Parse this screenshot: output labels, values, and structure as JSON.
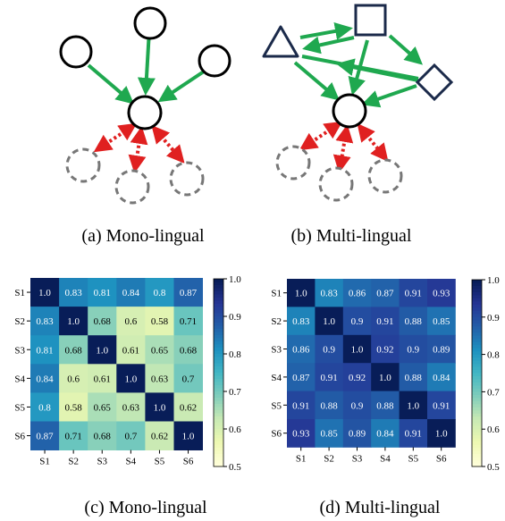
{
  "captions": {
    "a": "(a)  Mono-lingual",
    "b": "(b)  Multi-lingual",
    "c": "(c)  Mono-lingual",
    "d": "(d)  Multi-lingual"
  },
  "colors": {
    "node_stroke": "#000000",
    "shape_stroke": "#1b2a4a",
    "positive_edge": "#1fa84f",
    "negative_edge": "#e02020",
    "dashed_node": "#777777"
  },
  "chart_data": [
    {
      "type": "heatmap",
      "rows": [
        "S1",
        "S2",
        "S3",
        "S4",
        "S5",
        "S6"
      ],
      "cols": [
        "S1",
        "S2",
        "S3",
        "S4",
        "S5",
        "S6"
      ],
      "values": [
        [
          1.0,
          0.83,
          0.81,
          0.84,
          0.8,
          0.87
        ],
        [
          0.83,
          1.0,
          0.68,
          0.6,
          0.58,
          0.71
        ],
        [
          0.81,
          0.68,
          1.0,
          0.61,
          0.65,
          0.68
        ],
        [
          0.84,
          0.6,
          0.61,
          1.0,
          0.63,
          0.7
        ],
        [
          0.8,
          0.58,
          0.65,
          0.63,
          1.0,
          0.62
        ],
        [
          0.87,
          0.71,
          0.68,
          0.7,
          0.62,
          1.0
        ]
      ],
      "labels": [
        [
          "1.0",
          "0.83",
          "0.81",
          "0.84",
          "0.8",
          "0.87"
        ],
        [
          "0.83",
          "1.0",
          "0.68",
          "0.6",
          "0.58",
          "0.71"
        ],
        [
          "0.81",
          "0.68",
          "1.0",
          "0.61",
          "0.65",
          "0.68"
        ],
        [
          "0.84",
          "0.6",
          "0.61",
          "1.0",
          "0.63",
          "0.7"
        ],
        [
          "0.8",
          "0.58",
          "0.65",
          "0.63",
          "1.0",
          "0.62"
        ],
        [
          "0.87",
          "0.71",
          "0.68",
          "0.7",
          "0.62",
          "1.0"
        ]
      ],
      "colormap": "YlGnBu",
      "vmin": 0.5,
      "vmax": 1.0,
      "colorbar_ticks": [
        "0.5",
        "0.6",
        "0.7",
        "0.8",
        "0.9",
        "1.0"
      ]
    },
    {
      "type": "heatmap",
      "rows": [
        "S1",
        "S2",
        "S3",
        "S4",
        "S5",
        "S6"
      ],
      "cols": [
        "S1",
        "S2",
        "S3",
        "S4",
        "S5",
        "S6"
      ],
      "values": [
        [
          1.0,
          0.83,
          0.86,
          0.87,
          0.91,
          0.93
        ],
        [
          0.83,
          1.0,
          0.9,
          0.91,
          0.88,
          0.85
        ],
        [
          0.86,
          0.9,
          1.0,
          0.92,
          0.9,
          0.89
        ],
        [
          0.87,
          0.91,
          0.92,
          1.0,
          0.88,
          0.84
        ],
        [
          0.91,
          0.88,
          0.9,
          0.88,
          1.0,
          0.91
        ],
        [
          0.93,
          0.85,
          0.89,
          0.84,
          0.91,
          1.0
        ]
      ],
      "labels": [
        [
          "1.0",
          "0.83",
          "0.86",
          "0.87",
          "0.91",
          "0.93"
        ],
        [
          "0.83",
          "1.0",
          "0.9",
          "0.91",
          "0.88",
          "0.85"
        ],
        [
          "0.86",
          "0.9",
          "1.0",
          "0.92",
          "0.9",
          "0.89"
        ],
        [
          "0.87",
          "0.91",
          "0.92",
          "1.0",
          "0.88",
          "0.84"
        ],
        [
          "0.91",
          "0.88",
          "0.9",
          "0.88",
          "1.0",
          "0.91"
        ],
        [
          "0.93",
          "0.85",
          "0.89",
          "0.84",
          "0.91",
          "1.0"
        ]
      ],
      "colormap": "YlGnBu",
      "vmin": 0.5,
      "vmax": 1.0,
      "colorbar_ticks": [
        "0.5",
        "0.6",
        "0.7",
        "0.8",
        "0.9",
        "1.0"
      ]
    }
  ]
}
